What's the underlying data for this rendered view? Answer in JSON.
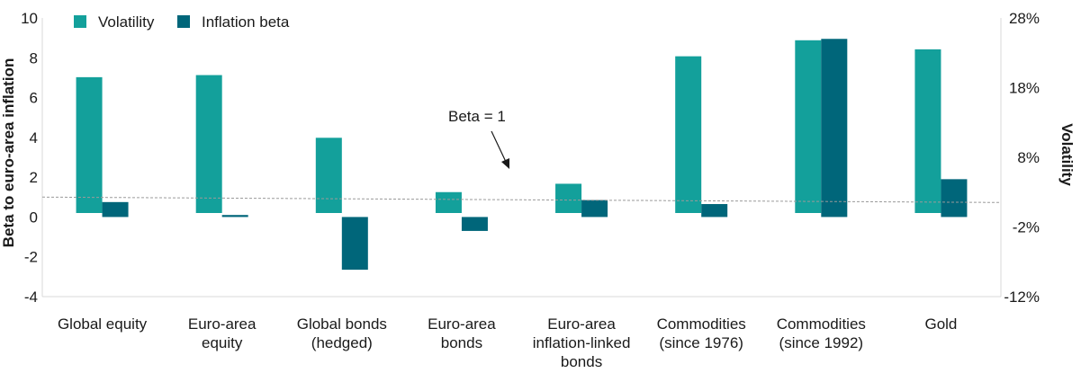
{
  "chart_data": {
    "type": "bar",
    "categories": [
      [
        "Global equity"
      ],
      [
        "Euro-area",
        "equity"
      ],
      [
        "Global bonds",
        "(hedged)"
      ],
      [
        "Euro-area",
        "bonds"
      ],
      [
        "Euro-area",
        "inflation-linked",
        "bonds"
      ],
      [
        "Commodities",
        "(since 1976)"
      ],
      [
        "Commodities",
        "(since 1992)"
      ],
      [
        "Gold"
      ]
    ],
    "series": [
      {
        "name": "Volatility",
        "axis": "right",
        "color": "#13a09b",
        "values": [
          0.195,
          0.198,
          0.108,
          0.03,
          0.042,
          0.225,
          0.248,
          0.235
        ]
      },
      {
        "name": "Inflation beta",
        "axis": "left",
        "color": "#00667a",
        "values": [
          0.75,
          0.1,
          -2.65,
          -0.7,
          0.85,
          0.65,
          8.95,
          1.9
        ]
      }
    ],
    "left_axis": {
      "label": "Beta to euro-area inflation",
      "ylim": [
        -4,
        10
      ],
      "ticks": [
        "-4",
        "-2",
        "0",
        "2",
        "4",
        "6",
        "8",
        "10"
      ],
      "tick_values": [
        -4,
        -2,
        0,
        2,
        4,
        6,
        8,
        10
      ]
    },
    "right_axis": {
      "label": "Volatility",
      "ylim": [
        -0.12,
        0.28
      ],
      "ticks": [
        "-12%",
        "-2%",
        "8%",
        "18%",
        "28%"
      ],
      "tick_values": [
        -0.12,
        -0.02,
        0.08,
        0.18,
        0.28
      ]
    },
    "reference_line": {
      "label": "Beta = 1",
      "value": 1
    },
    "legend_position": "top-left",
    "grid": false
  }
}
